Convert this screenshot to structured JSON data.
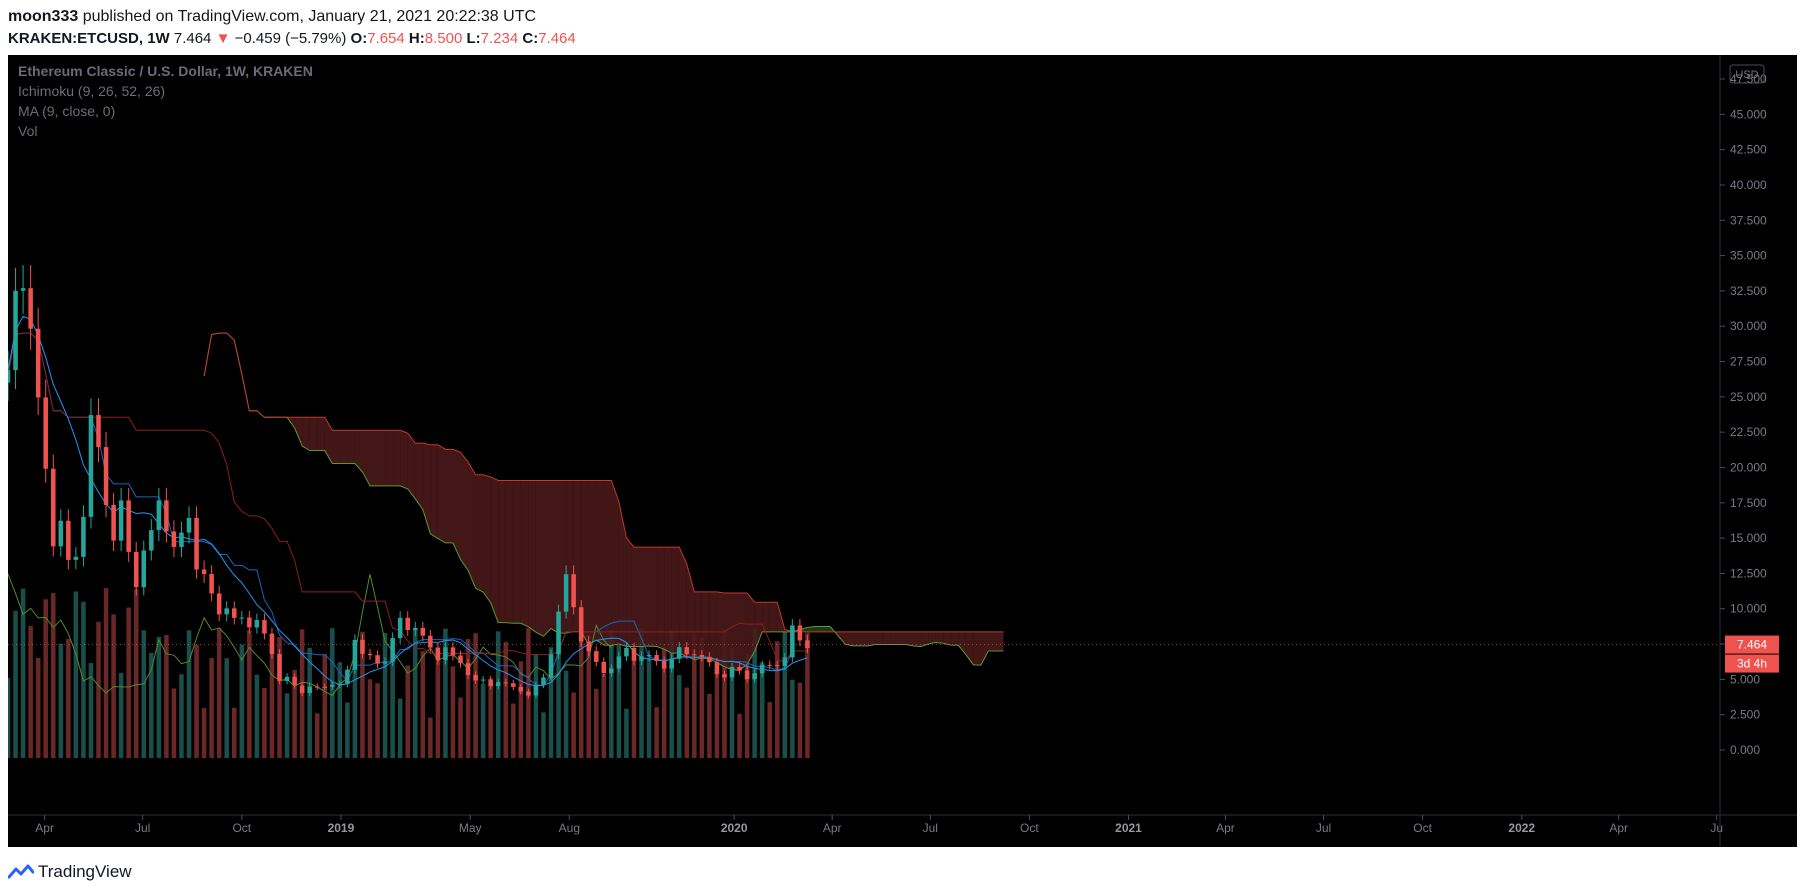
{
  "header": {
    "publisher": "moon333",
    "published_text": "published on TradingView.com, January 21, 2021 20:22:38 UTC",
    "symbol": "KRAKEN:ETCUSD",
    "interval": "1W",
    "last": "7.464",
    "change": "−0.459 (−5.79%)",
    "o_label": "O:",
    "o_value": "7.654",
    "h_label": "H:",
    "h_value": "8.500",
    "l_label": "L:",
    "l_value": "7.234",
    "c_label": "C:",
    "c_value": "7.464"
  },
  "legend": {
    "title": "Ethereum Classic / U.S. Dollar, 1W, KRAKEN",
    "ichimoku": "Ichimoku (9, 26, 52, 26)",
    "ma": "MA (9, close, 0)",
    "vol": "Vol"
  },
  "price_axis": {
    "currency": "USD",
    "last_price_label": "7.464",
    "countdown_label": "3d 4h"
  },
  "footer": {
    "brand": "TradingView"
  },
  "colors": {
    "background": "#000000",
    "bull": "#26a69a",
    "bear": "#ef5350",
    "ma": "#2196f3",
    "cloud_bull": "#1e3f1e",
    "cloud_bear": "#4a1a1a",
    "span_a": "#5a9a32",
    "span_b": "#c0392b",
    "axis_text": "#787b86",
    "legend_text": "#6a6d78",
    "brand_blue": "#2962ff"
  },
  "chart_data": {
    "type": "candlestick",
    "title": "Ethereum Classic / U.S. Dollar, 1W, KRAKEN",
    "ylim": [
      0,
      47.5
    ],
    "y_ticks": [
      "0.000",
      "2.500",
      "5.000",
      "7.500",
      "10.000",
      "12.500",
      "15.000",
      "17.500",
      "20.000",
      "22.500",
      "25.000",
      "27.500",
      "30.000",
      "32.500",
      "35.000",
      "37.500",
      "40.000",
      "42.500",
      "45.000",
      "47.500"
    ],
    "x_ticks": [
      {
        "label": "Apr",
        "date": "2018-04-01",
        "bold": false
      },
      {
        "label": "Jul",
        "date": "2018-07-01",
        "bold": false
      },
      {
        "label": "Oct",
        "date": "2018-10-01",
        "bold": false
      },
      {
        "label": "2019",
        "date": "2019-01-01",
        "bold": true
      },
      {
        "label": "May",
        "date": "2019-05-01",
        "bold": false
      },
      {
        "label": "Aug",
        "date": "2019-08-01",
        "bold": false
      },
      {
        "label": "2020",
        "date": "2020-01-01",
        "bold": true
      },
      {
        "label": "Apr",
        "date": "2020-04-01",
        "bold": false
      },
      {
        "label": "Jul",
        "date": "2020-07-01",
        "bold": false
      },
      {
        "label": "Oct",
        "date": "2020-10-01",
        "bold": false
      },
      {
        "label": "2021",
        "date": "2021-01-01",
        "bold": true
      },
      {
        "label": "Apr",
        "date": "2021-04-01",
        "bold": false
      },
      {
        "label": "Jul",
        "date": "2021-07-01",
        "bold": false
      },
      {
        "label": "Oct",
        "date": "2021-10-01",
        "bold": false
      },
      {
        "label": "2022",
        "date": "2022-01-01",
        "bold": true
      },
      {
        "label": "Apr",
        "date": "2022-04-01",
        "bold": false
      },
      {
        "label": "Ju",
        "date": "2022-07-01",
        "bold": false
      }
    ],
    "x_range": [
      "2018-02-26",
      "2022-07-04"
    ],
    "last_price": 7.464,
    "closes": [
      [
        8,
        26
      ],
      [
        9,
        32
      ],
      [
        10,
        34
      ],
      [
        11,
        30
      ],
      [
        12,
        24
      ],
      [
        13,
        20
      ],
      [
        14,
        15
      ],
      [
        15,
        16
      ],
      [
        16,
        13
      ],
      [
        17,
        14
      ],
      [
        18,
        17
      ],
      [
        19,
        23
      ],
      [
        20,
        21
      ],
      [
        21,
        18
      ],
      [
        22,
        15
      ],
      [
        23,
        17
      ],
      [
        24,
        14
      ],
      [
        25,
        12
      ],
      [
        26,
        14
      ],
      [
        27,
        15
      ],
      [
        28,
        18
      ],
      [
        29,
        16
      ],
      [
        30,
        14
      ],
      [
        31,
        15
      ],
      [
        32,
        17
      ],
      [
        33,
        13
      ],
      [
        34,
        12
      ],
      [
        35,
        11
      ],
      [
        36,
        10
      ],
      [
        37,
        10
      ],
      [
        38,
        9
      ],
      [
        39,
        9.5
      ],
      [
        40,
        9
      ],
      [
        41,
        9
      ],
      [
        42,
        8
      ],
      [
        43,
        7
      ],
      [
        44,
        5
      ],
      [
        45,
        5
      ],
      [
        46,
        4.5
      ],
      [
        47,
        4.2
      ],
      [
        48,
        4.5
      ],
      [
        49,
        4.3
      ],
      [
        50,
        4.5
      ],
      [
        51,
        4.8
      ],
      [
        52,
        4.6
      ],
      [
        53,
        5.5
      ],
      [
        54,
        8
      ],
      [
        55,
        7
      ],
      [
        56,
        6.5
      ],
      [
        57,
        6
      ],
      [
        58,
        6.5
      ],
      [
        59,
        8
      ],
      [
        60,
        9
      ],
      [
        61,
        8.5
      ],
      [
        62,
        9
      ],
      [
        63,
        8
      ],
      [
        64,
        7
      ],
      [
        65,
        6.5
      ],
      [
        66,
        7.5
      ],
      [
        67,
        6.5
      ],
      [
        68,
        6
      ],
      [
        69,
        5.5
      ],
      [
        70,
        5
      ],
      [
        71,
        4.8
      ],
      [
        72,
        4.5
      ],
      [
        73,
        5
      ],
      [
        74,
        4.7
      ],
      [
        75,
        4.3
      ],
      [
        76,
        4.2
      ],
      [
        77,
        4
      ],
      [
        78,
        4.5
      ],
      [
        79,
        5
      ],
      [
        80,
        7
      ],
      [
        81,
        10
      ],
      [
        82,
        12
      ],
      [
        83,
        10
      ],
      [
        84,
        8
      ],
      [
        85,
        7
      ],
      [
        86,
        6
      ],
      [
        87,
        5.5
      ],
      [
        88,
        6
      ],
      [
        89,
        6.5
      ],
      [
        90,
        7
      ],
      [
        91,
        6.5
      ],
      [
        92,
        6.8
      ],
      [
        93,
        6.5
      ],
      [
        94,
        6.2
      ],
      [
        95,
        6
      ],
      [
        96,
        6.5
      ],
      [
        97,
        7
      ],
      [
        98,
        6.8
      ],
      [
        99,
        7
      ],
      [
        100,
        6.5
      ],
      [
        101,
        6
      ],
      [
        102,
        5.5
      ],
      [
        103,
        5.3
      ],
      [
        104,
        5.7
      ],
      [
        105,
        5.5
      ],
      [
        106,
        5.2
      ],
      [
        107,
        5.5
      ],
      [
        108,
        5.8
      ],
      [
        109,
        6
      ],
      [
        110,
        6.2
      ],
      [
        111,
        6.5
      ],
      [
        112,
        8.5
      ],
      [
        113,
        7.9
      ],
      [
        114,
        7.464
      ]
    ]
  }
}
